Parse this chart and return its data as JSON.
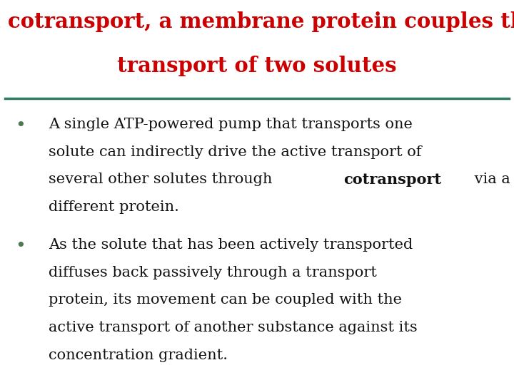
{
  "title_line1": "In cotransport, a membrane protein couples the",
  "title_line2": "transport of two solutes",
  "title_color": "#cc0000",
  "title_fontsize": 21,
  "divider_color": "#2e7d5e",
  "bullet_color": "#4a7c4e",
  "bullet_fontsize": 15,
  "body_color": "#111111",
  "background_color": "#ffffff",
  "bullet1_lines_before_bold": [
    "A single ATP-powered pump that transports one",
    "solute can indirectly drive the active transport of",
    "several other solutes through "
  ],
  "bullet1_bold_word": "cotransport",
  "bullet1_after_bold": " via a",
  "bullet1_last_line": "different protein.",
  "bullet2_lines": [
    "As the solute that has been actively transported",
    "diffuses back passively through a transport",
    "protein, its movement can be coupled with the",
    "active transport of another substance against its",
    "concentration gradient."
  ]
}
